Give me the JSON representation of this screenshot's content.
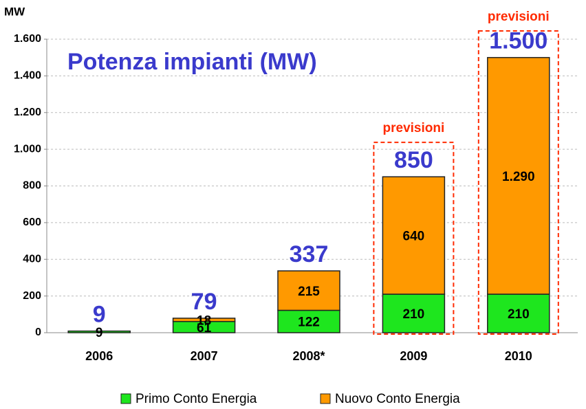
{
  "chart_data": {
    "type": "stacked_bar",
    "title": "Potenza impianti (MW)",
    "y_axis_label": "MW",
    "categories": [
      "2006",
      "2007",
      "2008*",
      "2009",
      "2010"
    ],
    "series": [
      {
        "name": "Primo Conto Energia",
        "color": "#1ee61e",
        "values": [
          9,
          61,
          122,
          210,
          210
        ],
        "value_labels": [
          "9",
          "61",
          "122",
          "210",
          "210"
        ]
      },
      {
        "name": "Nuovo Conto Energia",
        "color": "#ff9900",
        "values": [
          null,
          18,
          215,
          640,
          1290
        ],
        "value_labels": [
          null,
          "18",
          "215",
          "640",
          "1.290"
        ]
      }
    ],
    "totals": {
      "values": [
        9,
        79,
        337,
        850,
        1500
      ],
      "value_labels": [
        "9",
        "79",
        "337",
        "850",
        "1.500"
      ],
      "color": "#3a3acc"
    },
    "annotations": [
      "previsioni",
      "previsioni"
    ],
    "annotation_color": "#ff2a00",
    "ylim": [
      0,
      1600
    ],
    "yticks": [
      0,
      200,
      400,
      600,
      800,
      {
        "value": 1000,
        "label": "1.000"
      },
      {
        "value": 1200,
        "label": "1.200"
      },
      {
        "value": 1400,
        "label": "1.400"
      },
      {
        "value": 1600,
        "label": "1.600"
      }
    ],
    "grid": true,
    "legend": "bottom"
  }
}
